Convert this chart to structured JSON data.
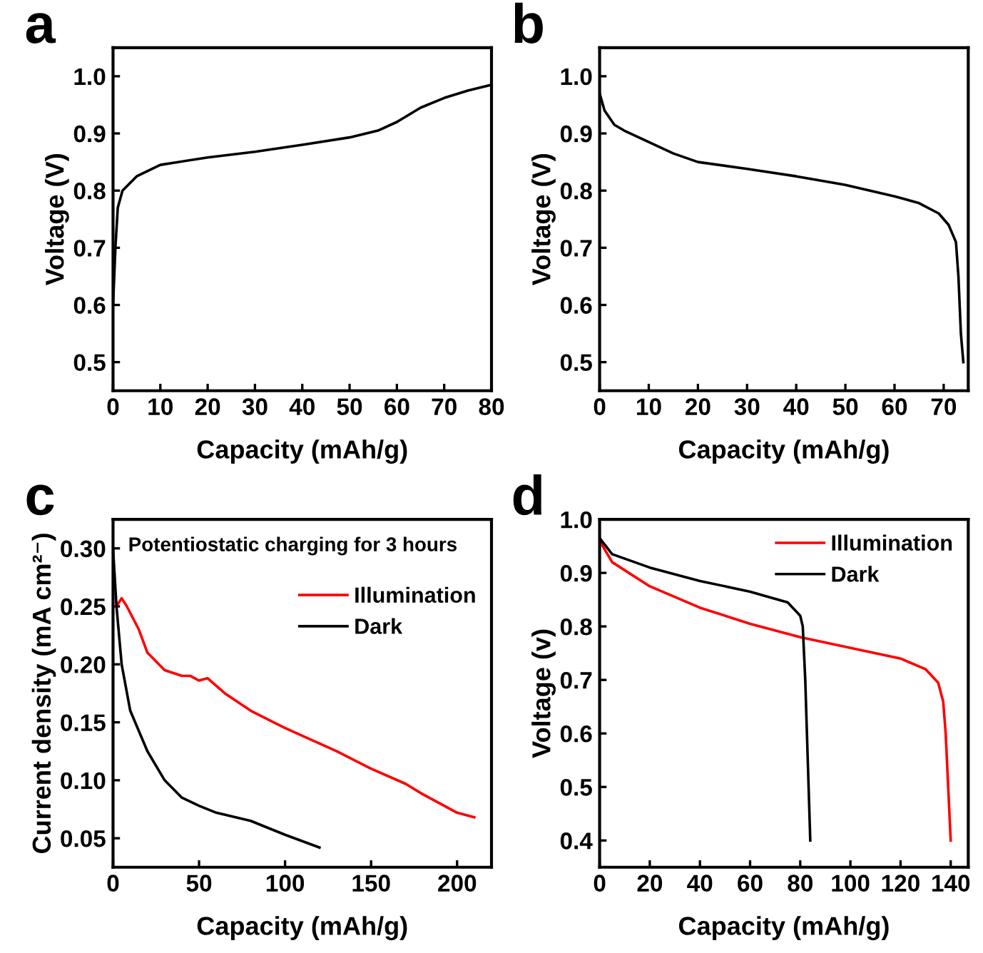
{
  "chart_data": [
    {
      "type": "line",
      "title": "a",
      "xlabel": "Capacity (mAh/g)",
      "ylabel": "Voltage (V)",
      "xlim": [
        0,
        80
      ],
      "ylim": [
        0.45,
        1.05
      ],
      "xticks": [
        0,
        10,
        20,
        30,
        40,
        50,
        60,
        70,
        80
      ],
      "yticks": [
        0.5,
        0.6,
        0.7,
        0.8,
        0.9,
        {
          "value": 1,
          "label": "1.0"
        }
      ],
      "x": [
        0,
        0.5,
        1,
        2,
        5,
        10,
        20,
        30,
        40,
        50,
        56,
        60,
        65,
        70,
        75,
        80
      ],
      "series": [
        {
          "color": "#000000",
          "values": [
            0.6,
            0.7,
            0.77,
            0.8,
            0.825,
            0.845,
            0.858,
            0.868,
            0.88,
            0.893,
            0.905,
            0.92,
            0.945,
            0.962,
            0.975,
            0.985
          ]
        }
      ]
    },
    {
      "type": "line",
      "title": "b",
      "xlabel": "Capacity (mAh/g)",
      "ylabel": "Voltage (V)",
      "xlim": [
        0,
        75
      ],
      "ylim": [
        0.45,
        1.05
      ],
      "xticks": [
        0,
        10,
        20,
        30,
        40,
        50,
        60,
        70
      ],
      "yticks": [
        0.5,
        0.6,
        0.7,
        0.8,
        0.9,
        {
          "value": 1,
          "label": "1.0"
        }
      ],
      "x": [
        0,
        1,
        3,
        5,
        10,
        15,
        20,
        30,
        40,
        50,
        60,
        65,
        69,
        71,
        72.5,
        73,
        73.5,
        74
      ],
      "series": [
        {
          "color": "#000000",
          "values": [
            0.97,
            0.94,
            0.915,
            0.905,
            0.885,
            0.865,
            0.85,
            0.838,
            0.825,
            0.81,
            0.79,
            0.778,
            0.76,
            0.74,
            0.71,
            0.65,
            0.55,
            0.5
          ]
        }
      ]
    },
    {
      "type": "line",
      "title": "c",
      "xlabel": "Capacity (mAh/g)",
      "ylabel": "Current density (mA cm²⁻)",
      "xlim": [
        0,
        220
      ],
      "ylim": [
        0.025,
        0.325
      ],
      "xticks": [
        0,
        50,
        100,
        150,
        200
      ],
      "yticks": [
        0.05,
        {
          "value": 0.1,
          "label": "0.10"
        },
        0.15,
        {
          "value": 0.2,
          "label": "0.20"
        },
        0.25,
        {
          "value": 0.3,
          "label": "0.30"
        }
      ],
      "legend": "top right",
      "annotations": [
        "Potentiostatic charging for 3 hours"
      ],
      "series": [
        {
          "name": "Illumination",
          "color": "#ff0000",
          "x": [
            0,
            2,
            5,
            8,
            15,
            20,
            30,
            40,
            45,
            50,
            55,
            65,
            80,
            100,
            130,
            150,
            170,
            180,
            200,
            210
          ],
          "values": [
            0.25,
            0.25,
            0.257,
            0.25,
            0.23,
            0.21,
            0.195,
            0.19,
            0.19,
            0.186,
            0.188,
            0.175,
            0.16,
            0.145,
            0.125,
            0.11,
            0.097,
            0.088,
            0.072,
            0.068
          ]
        },
        {
          "name": "Dark",
          "color": "#000000",
          "x": [
            0,
            2,
            5,
            10,
            20,
            30,
            40,
            50,
            60,
            80,
            100,
            120
          ],
          "values": [
            0.3,
            0.25,
            0.2,
            0.16,
            0.125,
            0.1,
            0.085,
            0.078,
            0.072,
            0.065,
            0.053,
            0.042
          ]
        }
      ]
    },
    {
      "type": "line",
      "title": "d",
      "xlabel": "Capacity (mAh/g)",
      "ylabel": "Voltage (v)",
      "xlim": [
        0,
        147
      ],
      "ylim": [
        0.35,
        1.0
      ],
      "xticks": [
        0,
        20,
        40,
        60,
        80,
        100,
        120,
        140
      ],
      "yticks": [
        0.4,
        0.5,
        0.6,
        0.7,
        0.8,
        0.9,
        {
          "value": 1,
          "label": "1.0"
        }
      ],
      "legend": "top right",
      "series": [
        {
          "name": "Illumination",
          "color": "#ff0000",
          "x": [
            0,
            5,
            20,
            40,
            60,
            80,
            100,
            120,
            130,
            135,
            137,
            138,
            139,
            140
          ],
          "values": [
            0.96,
            0.92,
            0.875,
            0.835,
            0.805,
            0.78,
            0.76,
            0.74,
            0.72,
            0.695,
            0.66,
            0.6,
            0.5,
            0.4
          ]
        },
        {
          "name": "Dark",
          "color": "#000000",
          "x": [
            0,
            5,
            20,
            40,
            60,
            75,
            80,
            81,
            82,
            83,
            84
          ],
          "values": [
            0.965,
            0.935,
            0.91,
            0.885,
            0.865,
            0.845,
            0.82,
            0.8,
            0.7,
            0.55,
            0.4
          ]
        }
      ]
    }
  ]
}
